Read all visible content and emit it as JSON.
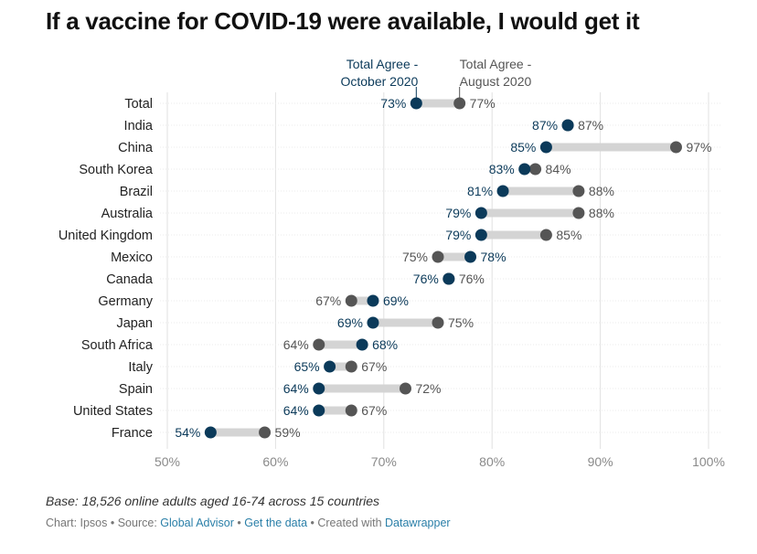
{
  "title": "If a vaccine for COVID-19 were available, I would get it",
  "notes": "Base: 18,526 online adults aged 16-74 across 15 countries",
  "byline": {
    "chart_prefix": "Chart: Ipsos",
    "sep": " • ",
    "source_prefix": "Source: ",
    "source_link": "Global Advisor",
    "data_link": "Get the data",
    "created_prefix": "Created with ",
    "created_link": "Datawrapper"
  },
  "colors": {
    "october": "#0b3a5a",
    "august": "#555555",
    "connector": "#d4d4d4",
    "grid": "#e2e2e2",
    "tick": "#8a8a8a"
  },
  "chart_data": {
    "type": "dot-range",
    "title": "If a vaccine for COVID-19 were available, I would get it",
    "xlim": [
      50,
      100
    ],
    "xticks": [
      50,
      60,
      70,
      80,
      90,
      100
    ],
    "xtick_labels": [
      "50%",
      "60%",
      "70%",
      "80%",
      "90%",
      "100%"
    ],
    "series": [
      {
        "name": "Total Agree - October 2020",
        "label_lines": [
          "Total Agree -",
          "October 2020"
        ]
      },
      {
        "name": "Total Agree - August 2020",
        "label_lines": [
          "Total Agree -",
          "August 2020"
        ]
      }
    ],
    "categories": [
      "Total",
      "India",
      "China",
      "South Korea",
      "Brazil",
      "Australia",
      "United Kingdom",
      "Mexico",
      "Canada",
      "Germany",
      "Japan",
      "South Africa",
      "Italy",
      "Spain",
      "United States",
      "France"
    ],
    "october": [
      73,
      87,
      85,
      83,
      81,
      79,
      79,
      78,
      76,
      69,
      69,
      68,
      65,
      64,
      64,
      54
    ],
    "august": [
      77,
      87,
      97,
      84,
      88,
      88,
      85,
      75,
      76,
      67,
      75,
      64,
      67,
      72,
      67,
      59
    ],
    "value_suffix": "%"
  }
}
